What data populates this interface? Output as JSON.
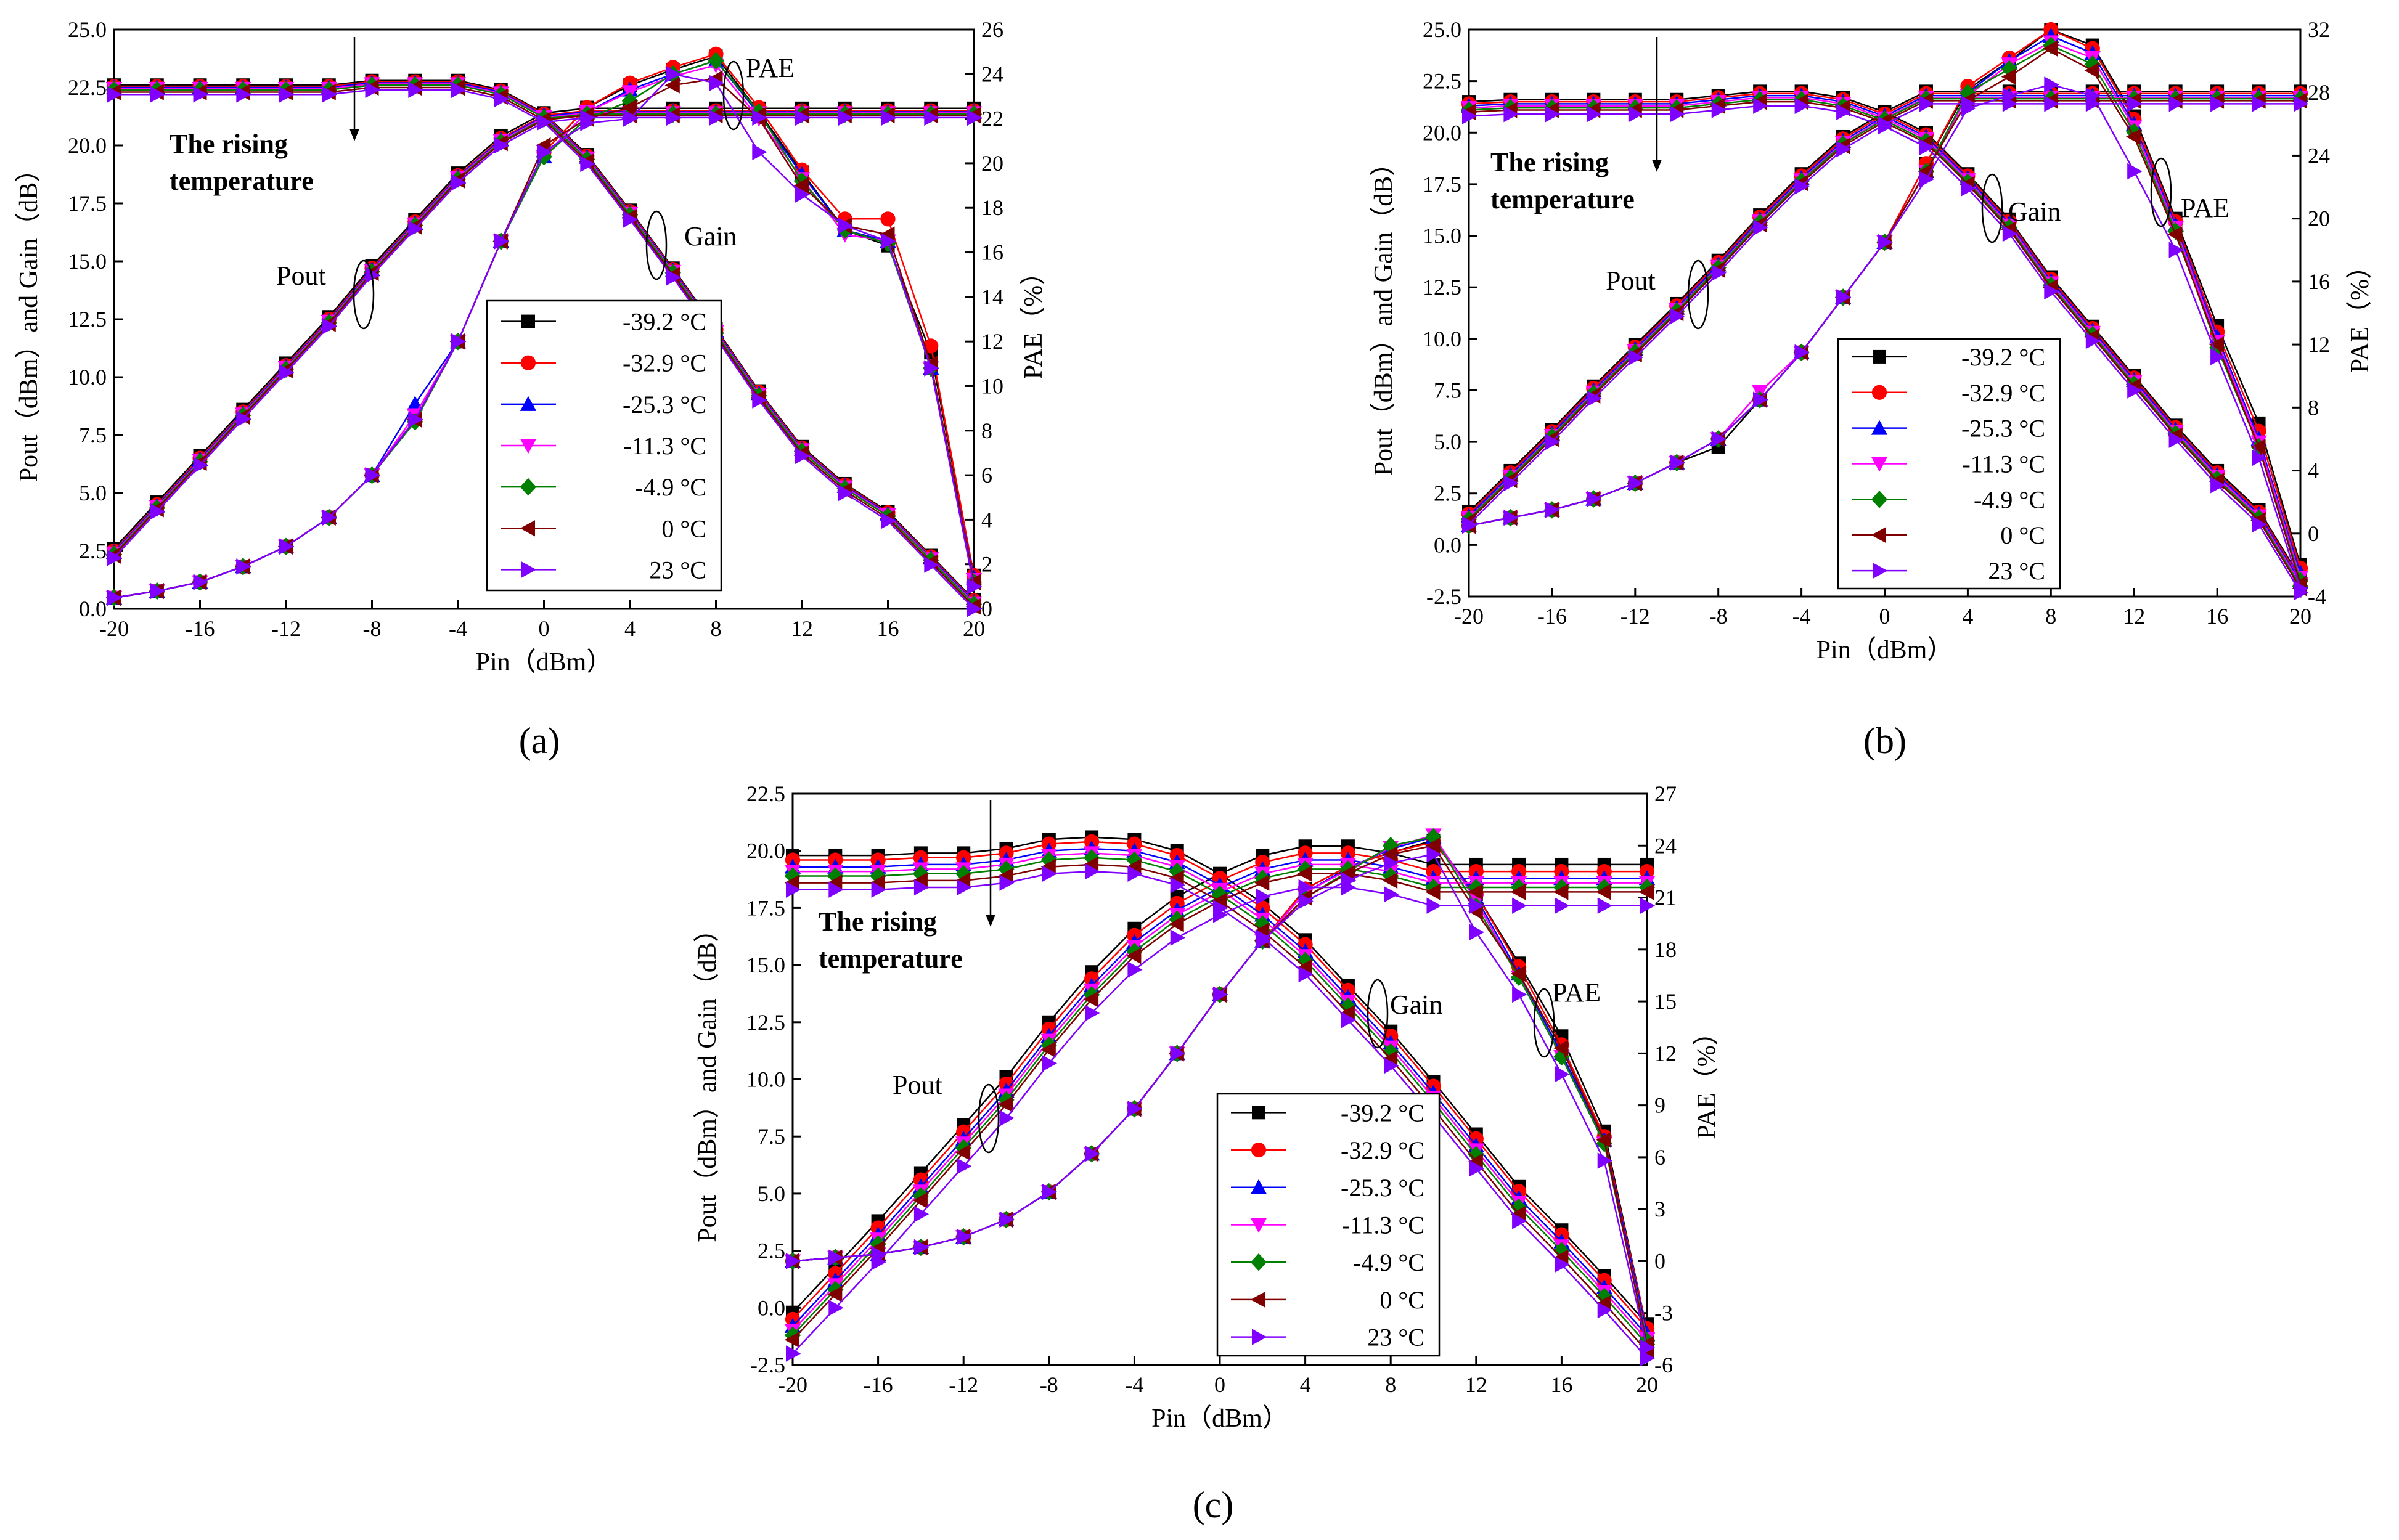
{
  "colors": {
    "-39.2 °C": "#000000",
    "-32.9 °C": "#ff0000",
    "-25.3 °C": "#0000ff",
    "-11.3 °C": "#ff00ff",
    "-4.9 °C": "#008000",
    "0 °C": "#800000",
    "23 °C": "#8000ff"
  },
  "markers": {
    "-39.2 °C": "square",
    "-32.9 °C": "circle",
    "-25.3 °C": "triangle-up",
    "-11.3 °C": "triangle-down",
    "-4.9 °C": "diamond",
    "0 °C": "triangle-left",
    "23 °C": "triangle-right"
  },
  "chart_data": [
    {
      "id": "a",
      "type": "line",
      "panel_label": "(a)",
      "xlabel": "Pin（dBm）",
      "ylabel": "Pout（dBm）and Gain（dB）",
      "y2label": "PAE（%）",
      "xlim": [
        -20,
        20
      ],
      "ylim": [
        0,
        25
      ],
      "y2lim": [
        0,
        26
      ],
      "xticks": [
        "-20",
        "-16",
        "-12",
        "-8",
        "-4",
        "0",
        "4",
        "8",
        "12",
        "16",
        "20"
      ],
      "yticks": [
        "0.0",
        "2.5",
        "5.0",
        "7.5",
        "10.0",
        "12.5",
        "15.0",
        "17.5",
        "20.0",
        "22.5",
        "25.0"
      ],
      "y2ticks": [
        "0",
        "2",
        "4",
        "6",
        "8",
        "10",
        "12",
        "14",
        "16",
        "18",
        "20",
        "22",
        "24",
        "26"
      ],
      "annotations": {
        "pout": "Pout",
        "gain": "Gain",
        "pae": "PAE",
        "rising_1": "The rising",
        "rising_2": "temperature"
      },
      "legend": [
        "-39.2 °C",
        "-32.9 °C",
        "-25.3 °C",
        "-11.3 °C",
        "-4.9 °C",
        "0 °C",
        "23 °C"
      ],
      "x": [
        -20,
        -18,
        -16,
        -14,
        -12,
        -10,
        -8,
        -6,
        -4,
        -2,
        0,
        2,
        4,
        6,
        8,
        10,
        12,
        14,
        16,
        18,
        20
      ],
      "pout_base": [
        2.6,
        4.6,
        6.6,
        8.6,
        10.6,
        12.6,
        14.8,
        16.8,
        18.8,
        20.4,
        21.4,
        21.6,
        21.6,
        21.6,
        21.6,
        21.6,
        21.6,
        21.6,
        21.6,
        21.6,
        21.6
      ],
      "pout_offsets": [
        0,
        -0.1,
        -0.15,
        -0.2,
        -0.25,
        -0.3,
        -0.4
      ],
      "gain_base": [
        22.6,
        22.6,
        22.6,
        22.6,
        22.6,
        22.6,
        22.8,
        22.8,
        22.8,
        22.4,
        21.4,
        19.6,
        17.2,
        14.7,
        12.1,
        9.4,
        7.0,
        5.4,
        4.2,
        2.3,
        0.4
      ],
      "gain_offsets": [
        0,
        -0.05,
        -0.1,
        -0.15,
        -0.2,
        -0.3,
        -0.4
      ],
      "pae_series": [
        {
          "name": "-39.2 °C",
          "values": [
            0.5,
            0.8,
            1.2,
            1.9,
            2.8,
            4.1,
            6.0,
            8.5,
            12.0,
            16.5,
            20.5,
            22.5,
            23.5,
            24.2,
            24.8,
            22.3,
            19.6,
            17.0,
            16.3,
            11.5,
            1.5
          ]
        },
        {
          "name": "-32.9 °C",
          "values": [
            0.5,
            0.8,
            1.2,
            1.9,
            2.8,
            4.1,
            6.0,
            8.5,
            12.0,
            16.5,
            20.5,
            22.5,
            23.6,
            24.3,
            24.9,
            22.5,
            19.7,
            17.5,
            17.5,
            11.8,
            1.5
          ]
        },
        {
          "name": "-25.3 °C",
          "values": [
            0.5,
            0.8,
            1.2,
            1.9,
            2.8,
            4.1,
            6.0,
            9.2,
            12.0,
            16.5,
            20.3,
            22.3,
            23.3,
            24.0,
            24.6,
            22.2,
            19.5,
            17.0,
            16.5,
            10.8,
            1.4
          ]
        },
        {
          "name": "-11.3 °C",
          "values": [
            0.5,
            0.8,
            1.2,
            1.9,
            2.8,
            4.1,
            6.0,
            8.7,
            12.0,
            16.5,
            20.3,
            22.3,
            23.2,
            23.9,
            24.4,
            22.0,
            19.3,
            16.8,
            16.5,
            10.8,
            1.3
          ]
        },
        {
          "name": "-4.9 °C",
          "values": [
            0.5,
            0.8,
            1.2,
            1.9,
            2.8,
            4.1,
            6.0,
            8.4,
            12.0,
            16.5,
            20.3,
            22.0,
            22.8,
            24.0,
            24.6,
            22.3,
            19.2,
            17.0,
            16.4,
            10.8,
            1.2
          ]
        },
        {
          "name": "0 °C",
          "values": [
            0.5,
            0.8,
            1.2,
            1.9,
            2.8,
            4.1,
            6.0,
            8.5,
            12.0,
            16.5,
            20.8,
            22.0,
            22.5,
            23.5,
            23.8,
            22.0,
            19.0,
            17.2,
            16.8,
            11.0,
            1.2
          ]
        },
        {
          "name": "23 °C",
          "values": [
            0.5,
            0.8,
            1.2,
            1.9,
            2.8,
            4.1,
            6.0,
            8.5,
            12.0,
            16.5,
            20.5,
            21.8,
            22.0,
            24.0,
            23.6,
            20.5,
            18.6,
            17.2,
            16.5,
            10.8,
            1.0
          ]
        }
      ]
    },
    {
      "id": "b",
      "type": "line",
      "panel_label": "(b)",
      "xlabel": "Pin（dBm）",
      "ylabel": "Pout（dBm）and Gain（dB）",
      "y2label": "PAE（%）",
      "xlim": [
        -20,
        20
      ],
      "ylim": [
        -2.5,
        25
      ],
      "y2lim": [
        -4,
        32
      ],
      "xticks": [
        "-20",
        "-16",
        "-12",
        "-8",
        "-4",
        "0",
        "4",
        "8",
        "12",
        "16",
        "20"
      ],
      "yticks": [
        "-2.5",
        "0.0",
        "2.5",
        "5.0",
        "7.5",
        "10.0",
        "12.5",
        "15.0",
        "17.5",
        "20.0",
        "22.5",
        "25.0"
      ],
      "y2ticks": [
        "-4",
        "0",
        "4",
        "8",
        "12",
        "16",
        "20",
        "24",
        "28",
        "32"
      ],
      "annotations": {
        "pout": "Pout",
        "gain": "Gain",
        "pae": "PAE",
        "rising_1": "The rising",
        "rising_2": "temperature"
      },
      "legend": [
        "-39.2 °C",
        "-32.9 °C",
        "-25.3 °C",
        "-11.3 °C",
        "-4.9 °C",
        "0 °C",
        "23 °C"
      ],
      "x": [
        -20,
        -18,
        -16,
        -14,
        -12,
        -10,
        -8,
        -6,
        -4,
        -2,
        0,
        2,
        4,
        6,
        8,
        10,
        12,
        14,
        16,
        18,
        20
      ],
      "pout_base": [
        1.6,
        3.6,
        5.6,
        7.7,
        9.7,
        11.7,
        13.8,
        16.0,
        18.0,
        19.8,
        21.0,
        22.0,
        22.0,
        22.0,
        22.0,
        22.0,
        22.0,
        22.0,
        22.0,
        22.0,
        22.0
      ],
      "pout_offsets": [
        0,
        -0.1,
        -0.2,
        -0.3,
        -0.35,
        -0.45,
        -0.6
      ],
      "gain_base": [
        21.5,
        21.6,
        21.6,
        21.6,
        21.6,
        21.6,
        21.8,
        22.0,
        22.0,
        21.7,
        21.0,
        20.0,
        18.0,
        15.8,
        13.0,
        10.6,
        8.2,
        5.8,
        3.6,
        1.7,
        -1.6
      ],
      "gain_offsets": [
        0,
        -0.1,
        -0.2,
        -0.3,
        -0.4,
        -0.5,
        -0.7
      ],
      "pae_series": [
        {
          "name": "-39.2 °C",
          "values": [
            0.5,
            1.0,
            1.5,
            2.2,
            3.2,
            4.5,
            5.5,
            8.5,
            11.5,
            15.0,
            18.5,
            23.5,
            28.2,
            30.0,
            32.0,
            31.0,
            26.5,
            20.0,
            13.2,
            7.0,
            -2.0
          ]
        },
        {
          "name": "-32.9 °C",
          "values": [
            0.5,
            1.0,
            1.5,
            2.2,
            3.2,
            4.5,
            6.0,
            8.5,
            11.5,
            15.0,
            18.5,
            23.5,
            28.4,
            30.2,
            32.0,
            30.8,
            26.3,
            19.8,
            12.8,
            6.5,
            -2.2
          ]
        },
        {
          "name": "-25.3 °C",
          "values": [
            0.5,
            1.0,
            1.5,
            2.2,
            3.2,
            4.5,
            6.0,
            8.5,
            11.5,
            15.0,
            18.5,
            23.0,
            28.0,
            30.0,
            31.6,
            30.5,
            26.0,
            19.6,
            12.5,
            6.0,
            -2.5
          ]
        },
        {
          "name": "-11.3 °C",
          "values": [
            0.5,
            1.0,
            1.5,
            2.2,
            3.2,
            4.5,
            6.0,
            9.0,
            11.5,
            15.0,
            18.5,
            23.0,
            27.8,
            29.8,
            31.2,
            30.2,
            25.8,
            19.4,
            12.2,
            5.8,
            -2.8
          ]
        },
        {
          "name": "-4.9 °C",
          "values": [
            0.5,
            1.0,
            1.5,
            2.2,
            3.2,
            4.5,
            6.0,
            8.5,
            11.5,
            15.0,
            18.5,
            23.0,
            28.0,
            29.5,
            31.0,
            29.8,
            25.5,
            19.2,
            11.8,
            5.5,
            -3.0
          ]
        },
        {
          "name": "0 °C",
          "values": [
            0.5,
            1.0,
            1.5,
            2.2,
            3.2,
            4.5,
            6.0,
            8.5,
            11.5,
            15.0,
            18.5,
            23.0,
            27.5,
            29.0,
            30.8,
            29.4,
            25.2,
            19.0,
            12.0,
            5.5,
            -3.2
          ]
        },
        {
          "name": "23 °C",
          "values": [
            0.5,
            1.0,
            1.5,
            2.2,
            3.2,
            4.5,
            6.0,
            8.5,
            11.5,
            15.0,
            18.5,
            22.5,
            27.0,
            27.8,
            28.5,
            27.8,
            23.0,
            18.0,
            11.2,
            4.8,
            -3.5
          ]
        }
      ]
    },
    {
      "id": "c",
      "type": "line",
      "panel_label": "(c)",
      "xlabel": "Pin（dBm）",
      "ylabel": "Pout（dBm）and Gain（dB）",
      "y2label": "PAE（%）",
      "xlim": [
        -20,
        20
      ],
      "ylim": [
        -2.5,
        22.5
      ],
      "y2lim": [
        -6,
        27
      ],
      "xticks": [
        "-20",
        "-16",
        "-12",
        "-8",
        "-4",
        "0",
        "4",
        "8",
        "12",
        "16",
        "20"
      ],
      "yticks": [
        "-2.5",
        "0.0",
        "2.5",
        "5.0",
        "7.5",
        "10.0",
        "12.5",
        "15.0",
        "17.5",
        "20.0",
        "22.5"
      ],
      "y2ticks": [
        "-6",
        "-3",
        "0",
        "3",
        "6",
        "9",
        "12",
        "15",
        "18",
        "21",
        "24",
        "27"
      ],
      "annotations": {
        "pout": "Pout",
        "gain": "Gain",
        "pae": "PAE",
        "rising_1": "The rising",
        "rising_2": "temperature"
      },
      "legend": [
        "-39.2 °C",
        "-32.9 °C",
        "-25.3 °C",
        "-11.3 °C",
        "-4.9 °C",
        "0 °C",
        "23 °C"
      ],
      "x": [
        -20,
        -18,
        -16,
        -14,
        -12,
        -10,
        -8,
        -6,
        -4,
        -2,
        0,
        2,
        4,
        6,
        8,
        10,
        12,
        14,
        16,
        18,
        20
      ],
      "pout_base": [
        -0.2,
        1.8,
        3.8,
        5.9,
        8.0,
        10.1,
        12.5,
        14.7,
        16.6,
        18.0,
        19.0,
        19.8,
        20.2,
        20.2,
        19.9,
        19.4,
        19.4,
        19.4,
        19.4,
        19.4,
        19.4
      ],
      "pout_offsets": [
        0,
        -0.3,
        -0.6,
        -0.8,
        -1.0,
        -1.2,
        -1.8
      ],
      "gain_base": [
        19.8,
        19.8,
        19.8,
        19.9,
        19.9,
        20.1,
        20.5,
        20.6,
        20.5,
        20.0,
        19.0,
        17.7,
        16.1,
        14.1,
        12.1,
        9.9,
        7.6,
        5.3,
        3.4,
        1.4,
        -0.7
      ],
      "gain_offsets": [
        0,
        -0.2,
        -0.5,
        -0.7,
        -0.9,
        -1.2,
        -1.5
      ],
      "pae_series": [
        {
          "name": "-39.2 °C",
          "values": [
            0.0,
            0.2,
            0.4,
            0.8,
            1.4,
            2.4,
            4.0,
            6.2,
            8.8,
            12.0,
            15.4,
            18.5,
            21.5,
            22.8,
            23.6,
            24.3,
            21.2,
            17.2,
            13.0,
            7.5,
            -4.0
          ]
        },
        {
          "name": "-32.9 °C",
          "values": [
            0.0,
            0.2,
            0.4,
            0.8,
            1.4,
            2.4,
            4.0,
            6.2,
            8.8,
            12.0,
            15.4,
            18.5,
            21.5,
            22.8,
            23.6,
            24.2,
            21.2,
            17.0,
            12.5,
            7.2,
            -4.0
          ]
        },
        {
          "name": "-25.3 °C",
          "values": [
            0.0,
            0.2,
            0.4,
            0.8,
            1.4,
            2.4,
            4.0,
            6.2,
            8.8,
            12.0,
            15.4,
            18.5,
            21.3,
            22.7,
            23.8,
            24.5,
            21.0,
            16.6,
            12.0,
            7.0,
            -4.2
          ]
        },
        {
          "name": "-11.3 °C",
          "values": [
            0.0,
            0.2,
            0.4,
            0.8,
            1.4,
            2.4,
            4.0,
            6.2,
            8.8,
            12.0,
            15.4,
            18.5,
            21.3,
            22.6,
            23.9,
            24.6,
            20.8,
            16.4,
            11.8,
            6.8,
            -4.5
          ]
        },
        {
          "name": "-4.9 °C",
          "values": [
            0.0,
            0.2,
            0.4,
            0.8,
            1.4,
            2.4,
            4.0,
            6.2,
            8.8,
            12.0,
            15.4,
            18.5,
            21.0,
            22.5,
            24.0,
            24.5,
            20.5,
            16.4,
            11.8,
            6.8,
            -4.6
          ]
        },
        {
          "name": "0 °C",
          "values": [
            0.0,
            0.2,
            0.4,
            0.8,
            1.4,
            2.4,
            4.0,
            6.2,
            8.8,
            12.0,
            15.4,
            18.5,
            21.0,
            22.4,
            23.5,
            24.0,
            20.2,
            16.6,
            12.3,
            7.0,
            -4.8
          ]
        },
        {
          "name": "23 °C",
          "values": [
            0.0,
            0.2,
            0.4,
            0.8,
            1.4,
            2.4,
            4.0,
            6.2,
            8.8,
            12.0,
            15.4,
            18.5,
            20.8,
            22.0,
            23.0,
            23.5,
            19.0,
            15.4,
            10.8,
            5.8,
            -5.0
          ]
        }
      ]
    }
  ]
}
